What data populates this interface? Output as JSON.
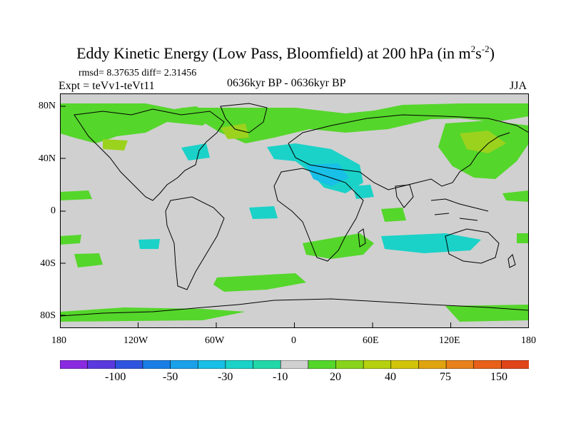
{
  "header": {
    "title_main": "Eddy Kinetic Energy (Low Pass, Bloomfield) at 200 hPa (in m",
    "title_sup1": "2",
    "title_s": "s",
    "title_sup2": "-2",
    "title_end": ")",
    "rmsd_line": "rmsd= 8.37635 diff= 2.31456",
    "experiment": "Expt = teVv1-teVt11",
    "period": "0636kyr BP - 0636kyr BP",
    "season": "JJA"
  },
  "axes": {
    "lat_labels": [
      "80N",
      "40N",
      "0",
      "40S",
      "80S"
    ],
    "lon_labels": [
      "180",
      "120W",
      "60W",
      "0",
      "60E",
      "120E",
      "180"
    ]
  },
  "colorbar": {
    "colors": [
      "#8a2be2",
      "#5a3adf",
      "#2f55e0",
      "#1a7ee6",
      "#1aa1ea",
      "#18bfe6",
      "#1ad2c8",
      "#22d8a8",
      "#d0d0d0",
      "#55d62b",
      "#88d41c",
      "#b5d10f",
      "#d2c40a",
      "#e0a410",
      "#e8811a",
      "#e86019",
      "#e0451a"
    ],
    "labels": [
      "-100",
      "-50",
      "-30",
      "-10",
      "20",
      "40",
      "75",
      "150"
    ]
  },
  "map": {
    "background": "#d0d0d0",
    "coastline_color": "#000000",
    "positive_color": "#55d62b",
    "positive_strong_color": "#9bd21e",
    "negative_color": "#1ad2c8",
    "negative_strong_color": "#18bfe6"
  }
}
